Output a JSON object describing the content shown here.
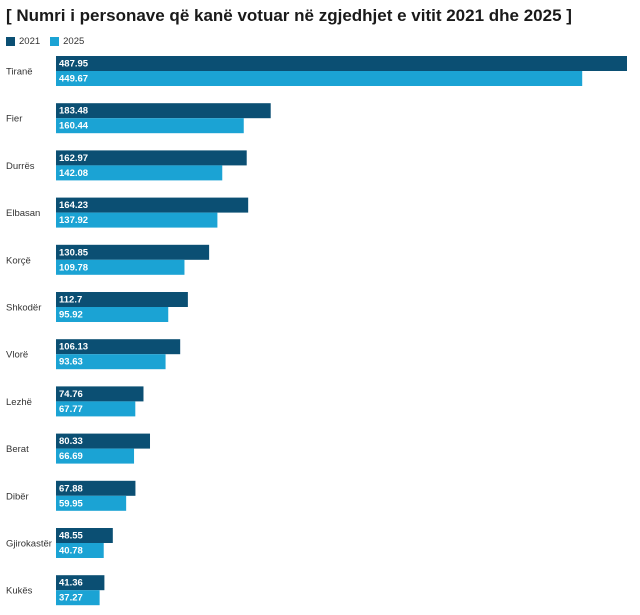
{
  "chart_data": {
    "type": "bar",
    "orientation": "horizontal",
    "title": "[ Numri i personave që kanë votuar në zgjedhjet e vitit 2021 dhe 2025 ]",
    "categories": [
      "Tiranë",
      "Fier",
      "Durrës",
      "Elbasan",
      "Korçë",
      "Shkodër",
      "Vlorë",
      "Lezhë",
      "Berat",
      "Dibër",
      "Gjirokastër",
      "Kukës"
    ],
    "series": [
      {
        "name": "2021",
        "color": "#0b4f73",
        "values": [
          487.95,
          183.48,
          162.97,
          164.23,
          130.85,
          112.7,
          106.13,
          74.76,
          80.33,
          67.88,
          48.55,
          41.36
        ]
      },
      {
        "name": "2025",
        "color": "#1ba3d4",
        "values": [
          449.67,
          160.44,
          142.08,
          137.92,
          109.78,
          95.92,
          93.63,
          67.77,
          66.69,
          59.95,
          40.78,
          37.27
        ]
      }
    ],
    "value_labels": {
      "2021": [
        "487.95",
        "183.48",
        "162.97",
        "164.23",
        "130.85",
        "112.7",
        "106.13",
        "74.76",
        "80.33",
        "67.88",
        "48.55",
        "41.36"
      ],
      "2025": [
        "449.67",
        "160.44",
        "142.08",
        "137.92",
        "109.78",
        "95.92",
        "93.63",
        "67.77",
        "66.69",
        "59.95",
        "40.78",
        "37.27"
      ]
    },
    "xlim": [
      0,
      487.95
    ],
    "grid": false,
    "legend_position": "top-left",
    "data_labels": "inside-start"
  }
}
